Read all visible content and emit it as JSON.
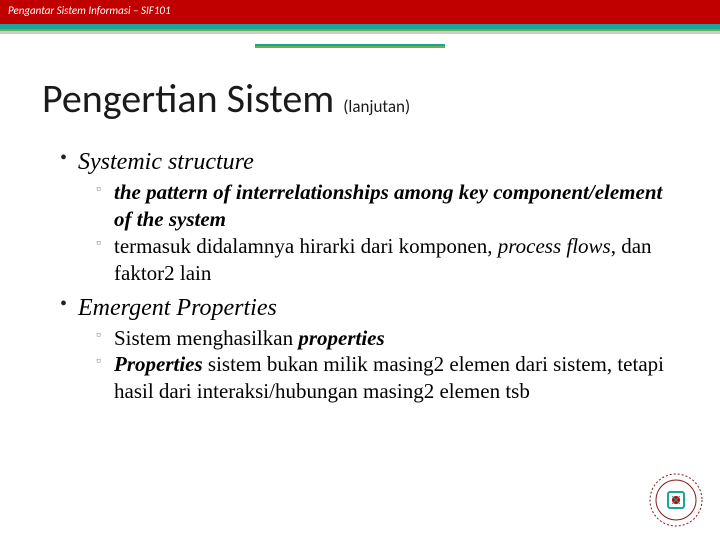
{
  "header": {
    "course": "Pengantar Sistem Informasi – SIF101"
  },
  "colors": {
    "header_bg": "#c00000",
    "stripe_teal": "#1ba39c",
    "stripe_green": "#6ab04c",
    "stripe_gray": "#cccccc",
    "text": "#1a1a1a"
  },
  "title": {
    "main": "Pengertian Sistem",
    "sub": "(lanjutan)"
  },
  "bullets": [
    {
      "head": "Systemic structure",
      "items": [
        {
          "html": "<span class='bold-it'>the pattern of interrelationships among key component/element of the system</span>"
        },
        {
          "html": "termasuk didalamnya hirarki dari komponen, <span class='it'>process flows</span>, dan faktor2 lain"
        }
      ]
    },
    {
      "head": "Emergent Properties",
      "items": [
        {
          "html": "Sistem menghasilkan <span class='bold-it'>properties</span>"
        },
        {
          "html": "<span class='bold-it'>Properties</span> sistem bukan milik masing2 elemen dari sistem, tetapi hasil dari interaksi/hubungan masing2 elemen tsb"
        }
      ]
    }
  ],
  "logo": {
    "outer_text_color": "#8a1818",
    "inner_color": "#1ba39c",
    "accent_color": "#c00000"
  }
}
